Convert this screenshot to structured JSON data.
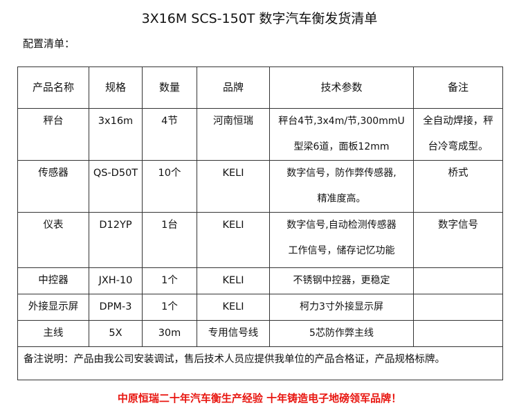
{
  "title": "3X16M SCS-150T 数字汽车衡发货清单",
  "subtitle": "配置清单：",
  "table": {
    "headers": [
      "产品名称",
      "规格",
      "数量",
      "品牌",
      "技术参数",
      "备注"
    ],
    "rows": [
      {
        "name": "秤台",
        "spec": "3x16m",
        "qty": "4节",
        "brand": "河南恒瑞",
        "tech": [
          "秤台4节,3x4m/节,300mmU",
          "型梁6道，面板12mm"
        ],
        "remark": [
          "全自动焊接，秤",
          "台冷弯成型。"
        ]
      },
      {
        "name": "传感器",
        "spec": "QS-D50T",
        "qty": "10个",
        "brand": "KELI",
        "tech": [
          "数字信号，防作弊传感器,",
          "精准度高。"
        ],
        "remark": [
          "桥式",
          ""
        ]
      },
      {
        "name": "仪表",
        "spec": "D12YP",
        "qty": "1台",
        "brand": "KELI",
        "tech": [
          "数字信号,自动检测传感器",
          "工作信号，储存记忆功能"
        ],
        "remark": [
          "数字信号",
          ""
        ]
      },
      {
        "name": "中控器",
        "spec": "JXH-10",
        "qty": "1个",
        "brand": "KELI",
        "tech": [
          "不锈钢中控器，更稳定"
        ],
        "remark": [
          ""
        ]
      },
      {
        "name": "外接显示屏",
        "spec": "DPM-3",
        "qty": "1个",
        "brand": "KELI",
        "tech": [
          "柯力3寸外接显示屏"
        ],
        "remark": [
          ""
        ]
      },
      {
        "name": "主线",
        "spec": "5X",
        "qty": "30m",
        "brand": "专用信号线",
        "tech": [
          "5芯防作弊主线"
        ],
        "remark": [
          ""
        ]
      }
    ],
    "note": "备注说明：产品由我公司安装调试，售后技术人员应提供我单位的产品合格证，产品规格标牌。"
  },
  "slogan": "中原恒瑞二十年汽车衡生产经验 十年铸造电子地磅领军品牌！",
  "colors": {
    "slogan": "#e8150f",
    "border": "#333333"
  }
}
